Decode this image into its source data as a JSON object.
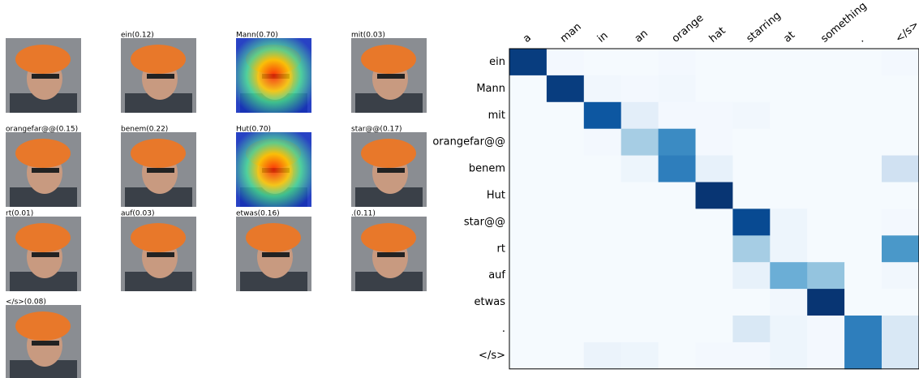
{
  "thumbnails": {
    "captions": [
      null,
      "ein(0.12)",
      "Mann(0.70)",
      "mit(0.03)",
      "orangefar@@(0.15)",
      "benem(0.22)",
      "Hut(0.70)",
      "star@@(0.17)",
      "rt(0.01)",
      "auf(0.03)",
      "etwas(0.16)",
      ".(0.11)",
      "</s>(0.08)"
    ]
  },
  "chart_data": {
    "type": "heatmap",
    "x_categories": [
      "a",
      "man",
      "in",
      "an",
      "orange",
      "hat",
      "starring",
      "at",
      "something",
      ".",
      "</s>"
    ],
    "y_categories": [
      "ein",
      "Mann",
      "mit",
      "orangefar@@",
      "benem",
      "Hut",
      "star@@",
      "rt",
      "auf",
      "etwas",
      ".",
      "</s>"
    ],
    "values": [
      [
        0.95,
        0.02,
        0.01,
        0.01,
        0.02,
        0.01,
        0.01,
        0.01,
        0.01,
        0.01,
        0.02
      ],
      [
        0.01,
        0.95,
        0.03,
        0.02,
        0.03,
        0.01,
        0.01,
        0.01,
        0.01,
        0.01,
        0.01
      ],
      [
        0.01,
        0.01,
        0.85,
        0.1,
        0.02,
        0.02,
        0.03,
        0.01,
        0.01,
        0.01,
        0.01
      ],
      [
        0.01,
        0.01,
        0.02,
        0.35,
        0.65,
        0.02,
        0.01,
        0.01,
        0.01,
        0.01,
        0.01
      ],
      [
        0.01,
        0.01,
        0.01,
        0.05,
        0.7,
        0.08,
        0.01,
        0.01,
        0.01,
        0.01,
        0.2
      ],
      [
        0.01,
        0.01,
        0.01,
        0.01,
        0.01,
        0.98,
        0.01,
        0.01,
        0.01,
        0.01,
        0.01
      ],
      [
        0.01,
        0.01,
        0.01,
        0.01,
        0.01,
        0.01,
        0.9,
        0.05,
        0.01,
        0.01,
        0.02
      ],
      [
        0.01,
        0.01,
        0.01,
        0.01,
        0.01,
        0.01,
        0.35,
        0.05,
        0.01,
        0.01,
        0.6
      ],
      [
        0.01,
        0.01,
        0.01,
        0.01,
        0.01,
        0.01,
        0.08,
        0.5,
        0.4,
        0.01,
        0.03
      ],
      [
        0.01,
        0.01,
        0.01,
        0.01,
        0.01,
        0.01,
        0.01,
        0.03,
        0.98,
        0.01,
        0.01
      ],
      [
        0.01,
        0.01,
        0.01,
        0.01,
        0.01,
        0.01,
        0.15,
        0.05,
        0.02,
        0.7,
        0.15
      ],
      [
        0.01,
        0.01,
        0.06,
        0.05,
        0.01,
        0.02,
        0.02,
        0.05,
        0.02,
        0.7,
        0.15
      ]
    ],
    "zlim": [
      0,
      1
    ],
    "colormap": [
      "#f7fbff",
      "#deebf7",
      "#c6dbef",
      "#9ecae1",
      "#6baed6",
      "#4292c6",
      "#2171b5",
      "#08519c",
      "#08306b"
    ]
  }
}
